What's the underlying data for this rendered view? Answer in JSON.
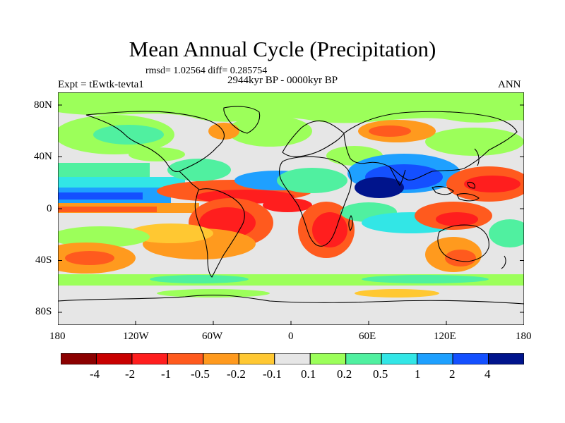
{
  "title": "Mean Annual Cycle (Precipitation)",
  "stats": "rmsd= 1.02564 diff= 0.285754",
  "experiment": "Expt = tEwtk-tevta1",
  "period": "2944kyr BP - 0000kyr BP",
  "season": "ANN",
  "lat_labels": [
    "80N",
    "40N",
    "0",
    "40S",
    "80S"
  ],
  "lon_labels": [
    "180",
    "120W",
    "60W",
    "0",
    "60E",
    "120E",
    "180"
  ],
  "colorbar": {
    "colors": [
      "#8b0000",
      "#c80000",
      "#ff1e1e",
      "#ff5a1e",
      "#ff9a1e",
      "#ffc832",
      "#e6e6e6",
      "#9cff5a",
      "#50f0a0",
      "#32e6e6",
      "#1ea0ff",
      "#1450ff",
      "#00148c"
    ],
    "labels": [
      "-4",
      "-2",
      "-1",
      "-0.5",
      "-0.2",
      "-0.1",
      "0.1",
      "0.2",
      "0.5",
      "1",
      "2",
      "4"
    ]
  }
}
